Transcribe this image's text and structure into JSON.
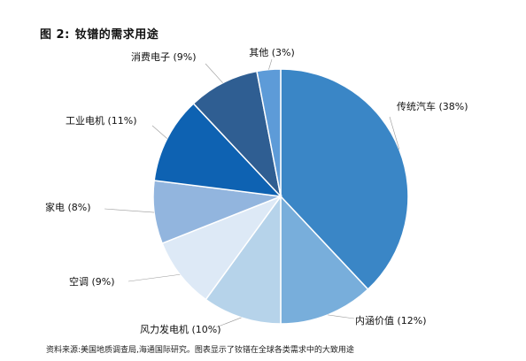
{
  "figure": {
    "number": "图 2:",
    "title": "钕镨的需求用途"
  },
  "source": {
    "label": "资料来源:",
    "text": "美国地质调查局,海通国际研究。图表显示了钕镨在全球各类需求中的大致用途"
  },
  "chart_data": {
    "type": "pie",
    "unit": "%",
    "start": "12 o'clock, clockwise",
    "slices": [
      {
        "label": "传统汽车",
        "value": 38,
        "display": "传统汽车 (38%)",
        "color": "#3a86c6"
      },
      {
        "label": "内涵价值",
        "value": 12,
        "display": "内涵价值 (12%)",
        "color": "#78aedb"
      },
      {
        "label": "风力发电机",
        "value": 10,
        "display": "风力发电机 (10%)",
        "color": "#b6d3ea"
      },
      {
        "label": "空调",
        "value": 9,
        "display": "空调 (9%)",
        "color": "#dde9f6"
      },
      {
        "label": "家电",
        "value": 8,
        "display": "家电 (8%)",
        "color": "#92b5de"
      },
      {
        "label": "工业电机",
        "value": 11,
        "display": "工业电机 (11%)",
        "color": "#0e62b2"
      },
      {
        "label": "消费电子",
        "value": 9,
        "display": "消费电子 (9%)",
        "color": "#2f5e92"
      },
      {
        "label": "其他",
        "value": 3,
        "display": "其他 (3%)",
        "color": "#5d9bd8"
      }
    ]
  }
}
